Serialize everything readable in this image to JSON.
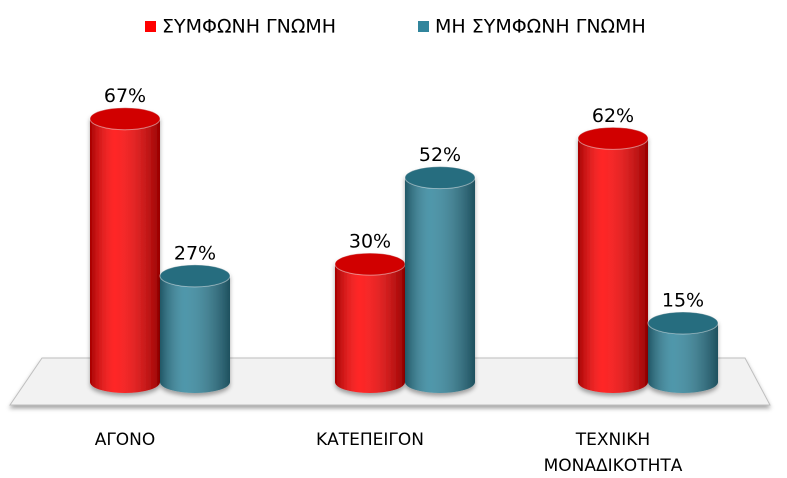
{
  "chart_data": {
    "type": "bar3d",
    "categories": [
      "ΑΓΟΝΟ",
      "ΚΑΤΕΠΕΙΓΟΝ",
      "ΤΕΧΝΙΚΗ ΜΟΝΑΔΙΚΟΤΗΤΑ"
    ],
    "series": [
      {
        "name": "ΣΥΜΦΩΝΗ ΓΝΩΜΗ",
        "color": "#ff0000",
        "values": [
          67,
          30,
          62
        ],
        "value_labels": [
          "67%",
          "30%",
          "62%"
        ]
      },
      {
        "name": "ΜΗ ΣΥΜΦΩΝΗ ΓΝΩΜΗ",
        "color": "#31859c",
        "values": [
          27,
          52,
          15
        ],
        "value_labels": [
          "27%",
          "52%",
          "15%"
        ]
      }
    ]
  }
}
